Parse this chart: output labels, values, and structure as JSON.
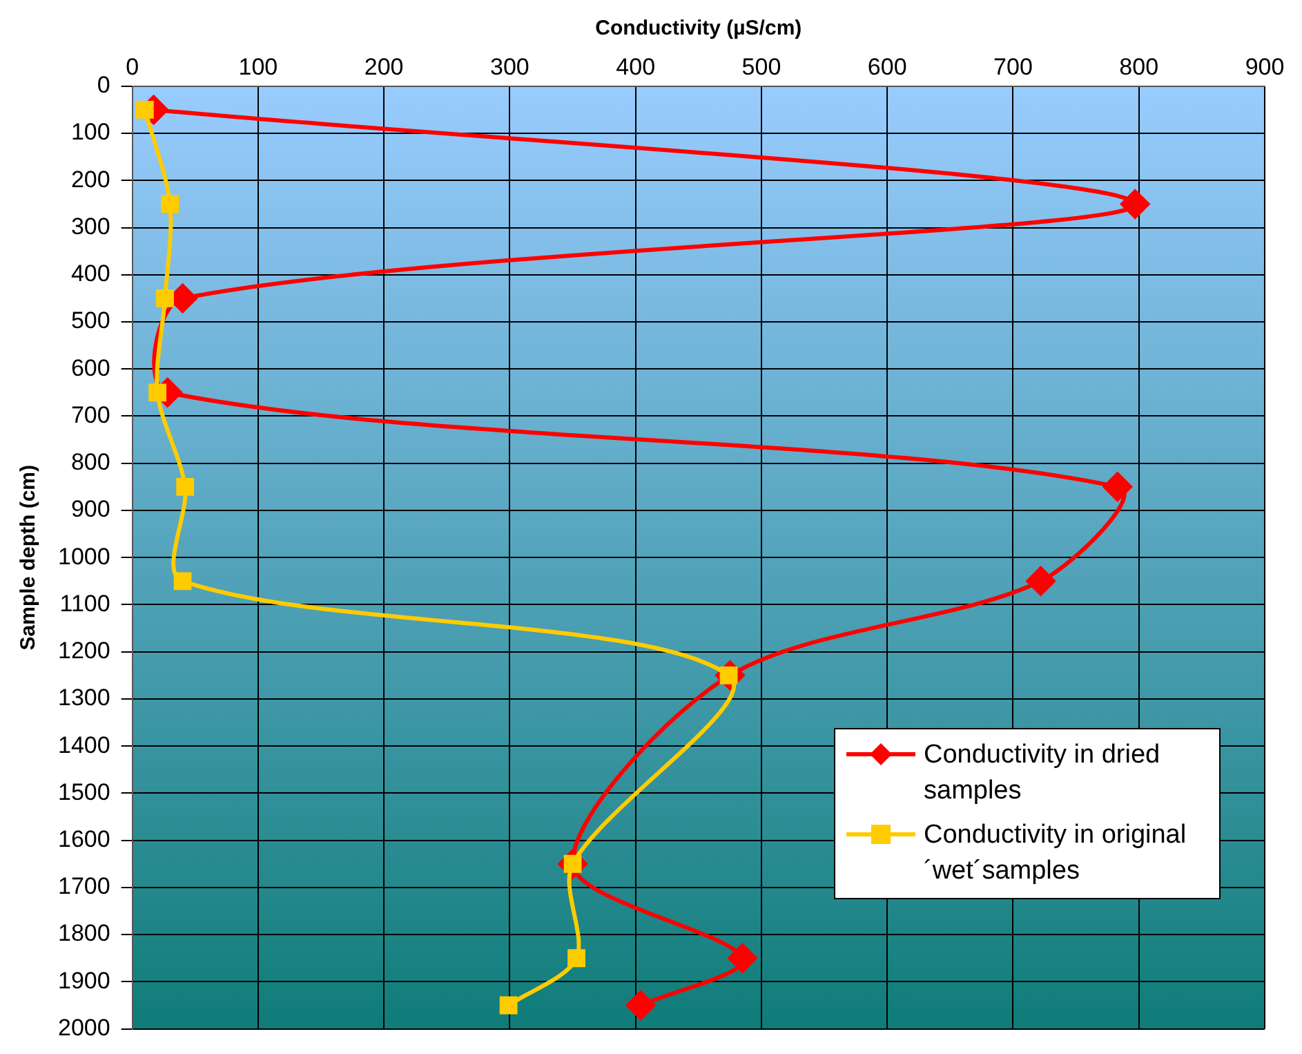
{
  "chart_data": {
    "type": "line",
    "xlabel": "Conductivity (µS/cm)",
    "ylabel": "Sample depth (cm)",
    "xlim": [
      0,
      900
    ],
    "xticks": [
      0,
      100,
      200,
      300,
      400,
      500,
      600,
      700,
      800,
      900
    ],
    "ylim": [
      2000,
      0
    ],
    "yticks": [
      0,
      100,
      200,
      300,
      400,
      500,
      600,
      700,
      800,
      900,
      1000,
      1100,
      1200,
      1300,
      1400,
      1500,
      1600,
      1700,
      1800,
      1900,
      2000
    ],
    "grid": true,
    "legend": "bottom right",
    "series": [
      {
        "name": "Conductivity in dried samples",
        "color": "#ff0000",
        "marker": "diamond",
        "x": [
          17,
          797,
          40,
          28,
          783,
          722,
          475,
          null,
          350,
          485,
          404
        ],
        "values": [
          50,
          250,
          450,
          650,
          850,
          1050,
          1250,
          null,
          1650,
          1850,
          1950
        ]
      },
      {
        "name": "Conductivity in original´wet´samples",
        "color": "#ffcc00",
        "marker": "square",
        "x": [
          10,
          30,
          26,
          20,
          42,
          40,
          474,
          null,
          350,
          353,
          299
        ],
        "values": [
          50,
          250,
          450,
          650,
          850,
          1050,
          1250,
          null,
          1650,
          1850,
          1950
        ]
      }
    ]
  }
}
